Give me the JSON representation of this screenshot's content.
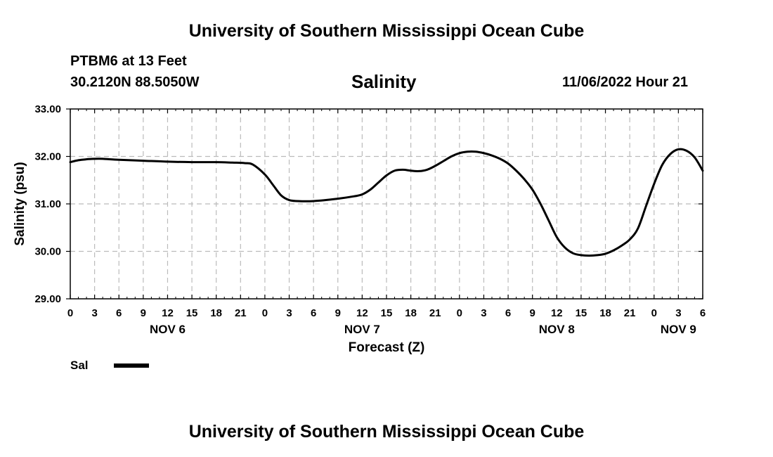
{
  "header": {
    "title": "University of Southern Mississippi Ocean Cube",
    "station": "PTBM6 at 13 Feet",
    "coordinates": "30.2120N  88.5050W",
    "timestamp": "11/06/2022 Hour 21"
  },
  "legend": {
    "label": "Sal"
  },
  "footer": {
    "title": "University of Southern Mississippi Ocean Cube"
  },
  "chart_data": {
    "type": "line",
    "title": "Salinity",
    "xlabel": "Forecast (Z)",
    "ylabel": "Salinity (psu)",
    "xlim": [
      0,
      78
    ],
    "ylim": [
      29.0,
      33.0
    ],
    "yticks": [
      29.0,
      30.0,
      31.0,
      32.0,
      33.0
    ],
    "ytick_labels": [
      "29.00",
      "30.00",
      "31.00",
      "32.00",
      "33.00"
    ],
    "xticks": [
      0,
      3,
      6,
      9,
      12,
      15,
      18,
      21,
      24,
      27,
      30,
      33,
      36,
      39,
      42,
      45,
      48,
      51,
      54,
      57,
      60,
      63,
      66,
      69,
      72,
      75,
      78
    ],
    "xtick_labels": [
      "0",
      "3",
      "6",
      "9",
      "12",
      "15",
      "18",
      "21",
      "0",
      "3",
      "6",
      "9",
      "12",
      "15",
      "18",
      "21",
      "0",
      "3",
      "6",
      "9",
      "12",
      "15",
      "18",
      "21",
      "0",
      "3",
      "6"
    ],
    "date_labels": [
      {
        "text": "NOV 6",
        "x": 12
      },
      {
        "text": "NOV 7",
        "x": 36
      },
      {
        "text": "NOV 8",
        "x": 60
      },
      {
        "text": "NOV 9",
        "x": 75
      }
    ],
    "grid": true,
    "series": [
      {
        "name": "Sal",
        "x": [
          0,
          1,
          2,
          3,
          4,
          6,
          9,
          12,
          15,
          18,
          20,
          21.5,
          22.5,
          24,
          25,
          26,
          27,
          28,
          30,
          33,
          35,
          36,
          37,
          38,
          39,
          40,
          41,
          42,
          43,
          44,
          45,
          46,
          47,
          48,
          49,
          50,
          51,
          52,
          53,
          54,
          55,
          56,
          57,
          58,
          59,
          60,
          61,
          62,
          63,
          64,
          65,
          66,
          67,
          68,
          69,
          70,
          71,
          72,
          73,
          74,
          75,
          76,
          77,
          78
        ],
        "values": [
          31.88,
          31.92,
          31.94,
          31.95,
          31.95,
          31.93,
          31.91,
          31.89,
          31.88,
          31.88,
          31.87,
          31.86,
          31.83,
          31.62,
          31.4,
          31.18,
          31.08,
          31.06,
          31.06,
          31.11,
          31.16,
          31.2,
          31.3,
          31.45,
          31.6,
          31.7,
          31.72,
          31.7,
          31.69,
          31.72,
          31.8,
          31.9,
          32.0,
          32.07,
          32.1,
          32.1,
          32.07,
          32.02,
          31.95,
          31.85,
          31.7,
          31.52,
          31.3,
          31.0,
          30.65,
          30.3,
          30.08,
          29.96,
          29.92,
          29.91,
          29.92,
          29.95,
          30.02,
          30.12,
          30.25,
          30.48,
          30.95,
          31.42,
          31.82,
          32.05,
          32.15,
          32.12,
          31.98,
          31.7
        ]
      }
    ]
  }
}
